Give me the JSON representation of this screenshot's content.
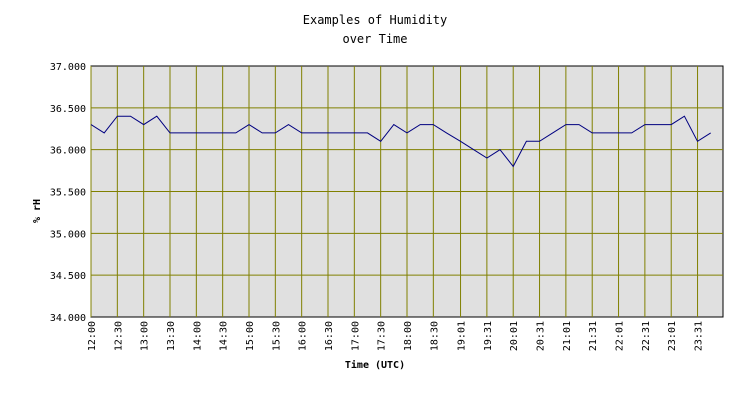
{
  "chart_data": {
    "type": "line",
    "title": [
      "Examples of Humidity",
      "over Time"
    ],
    "xlabel": "Time (UTC)",
    "ylabel": "% rH",
    "ylim": [
      34.0,
      37.0
    ],
    "yticks": [
      "34.000",
      "34.500",
      "35.000",
      "35.500",
      "36.000",
      "36.500",
      "37.000"
    ],
    "ytick_values": [
      34.0,
      34.5,
      35.0,
      35.5,
      36.0,
      36.5,
      37.0
    ],
    "xticks": [
      "12:00",
      "12:30",
      "13:00",
      "13:30",
      "14:00",
      "14:30",
      "15:00",
      "15:30",
      "16:00",
      "16:30",
      "17:00",
      "17:30",
      "18:00",
      "18:30",
      "19:01",
      "19:31",
      "20:01",
      "20:31",
      "21:01",
      "21:31",
      "22:01",
      "22:31",
      "23:01",
      "23:31"
    ],
    "grid": true,
    "colors": {
      "plot_bg": "#e0e0e0",
      "grid": "#808000",
      "series": "#000080"
    },
    "series": [
      {
        "name": "",
        "x": [
          "12:00",
          "12:15",
          "12:30",
          "12:45",
          "13:00",
          "13:15",
          "13:30",
          "13:45",
          "14:00",
          "14:15",
          "14:30",
          "14:45",
          "15:00",
          "15:15",
          "15:30",
          "15:45",
          "16:00",
          "16:15",
          "16:30",
          "16:45",
          "17:00",
          "17:15",
          "17:30",
          "17:45",
          "18:00",
          "18:15",
          "18:30",
          "18:45",
          "19:01",
          "19:16",
          "19:31",
          "19:46",
          "20:01",
          "20:16",
          "20:31",
          "20:46",
          "21:01",
          "21:16",
          "21:31",
          "21:46",
          "22:01",
          "22:16",
          "22:31",
          "22:46",
          "23:01",
          "23:16",
          "23:31",
          "23:46"
        ],
        "values": [
          36.3,
          36.2,
          36.4,
          36.4,
          36.3,
          36.4,
          36.2,
          36.2,
          36.2,
          36.2,
          36.2,
          36.2,
          36.3,
          36.2,
          36.2,
          36.3,
          36.2,
          36.2,
          36.2,
          36.2,
          36.2,
          36.2,
          36.1,
          36.3,
          36.2,
          36.3,
          36.3,
          36.2,
          36.1,
          36.0,
          35.9,
          36.0,
          35.8,
          36.1,
          36.1,
          36.2,
          36.3,
          36.3,
          36.2,
          36.2,
          36.2,
          36.2,
          36.3,
          36.3,
          36.3,
          36.4,
          36.1,
          36.2
        ]
      }
    ]
  }
}
